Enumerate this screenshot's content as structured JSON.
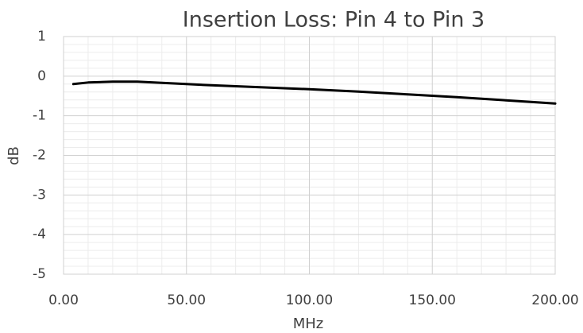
{
  "chart_data": {
    "type": "line",
    "title": "Insertion Loss: Pin 4 to Pin 3",
    "x_label": "MHz",
    "y_label": "dB",
    "x": [
      4,
      10,
      20,
      30,
      40,
      50,
      60,
      80,
      100,
      120,
      140,
      160,
      180,
      200
    ],
    "series": [
      {
        "name": "Insertion Loss",
        "color": "#000000",
        "values": [
          -0.2,
          -0.16,
          -0.14,
          -0.14,
          -0.17,
          -0.2,
          -0.23,
          -0.28,
          -0.33,
          -0.39,
          -0.46,
          -0.53,
          -0.61,
          -0.69
        ]
      }
    ],
    "xlim": [
      0,
      200
    ],
    "xticks": [
      {
        "value": 0,
        "label": "0.00"
      },
      {
        "value": 50,
        "label": "50.00"
      },
      {
        "value": 100,
        "label": "100.00"
      },
      {
        "value": 150,
        "label": "150.00"
      },
      {
        "value": 200,
        "label": "200.00"
      }
    ],
    "ylim": [
      -5,
      1
    ],
    "yticks": [
      1,
      0,
      -1,
      -2,
      -3,
      -4,
      -5
    ],
    "grid": true,
    "minor_grid": true
  }
}
